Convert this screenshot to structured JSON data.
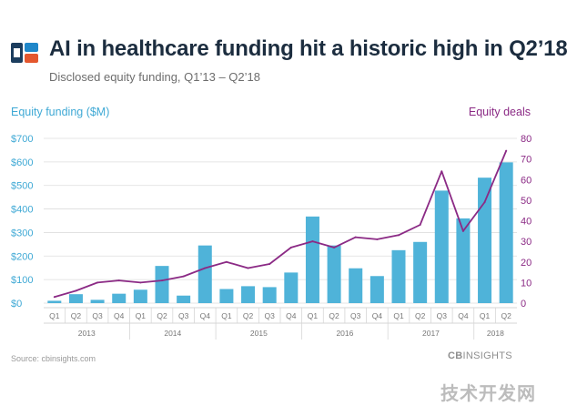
{
  "header": {
    "logo": "CB Insights logo",
    "title": "AI in healthcare funding hit a historic high in Q2’18",
    "subtitle": "Disclosed equity funding, Q1’13 – Q2’18"
  },
  "colors": {
    "bar": "#4fb3d9",
    "line": "#8b2a85",
    "left_axis_text": "#3fa9d5",
    "right_axis_text": "#8b2a85",
    "title": "#1c2d3f",
    "grid": "#dddddd"
  },
  "footer": {
    "source": "Source: cbinsights.com",
    "brand_prefix": "CB",
    "brand_suffix": "INSIGHTS",
    "watermark": "技术开发网"
  },
  "chart_data": {
    "type": "bar+line",
    "title": "AI in healthcare funding hit a historic high in Q2’18",
    "subtitle": "Disclosed equity funding, Q1’13 – Q2’18",
    "ylabel_left": "Equity funding ($M)",
    "ylabel_right": "Equity deals",
    "ylim_left": [
      0,
      700
    ],
    "ylim_right": [
      0,
      80
    ],
    "left_ticks": [
      "$0",
      "$100",
      "$200",
      "$300",
      "$400",
      "$500",
      "$600",
      "$700"
    ],
    "right_ticks": [
      "0",
      "10",
      "20",
      "30",
      "40",
      "50",
      "60",
      "70",
      "80"
    ],
    "grid": true,
    "legend": "none",
    "categories": [
      "Q1",
      "Q2",
      "Q3",
      "Q4",
      "Q1",
      "Q2",
      "Q3",
      "Q4",
      "Q1",
      "Q2",
      "Q3",
      "Q4",
      "Q1",
      "Q2",
      "Q3",
      "Q4",
      "Q1",
      "Q2",
      "Q3",
      "Q4",
      "Q1",
      "Q2"
    ],
    "year_groups": [
      {
        "year": "2013",
        "count": 4
      },
      {
        "year": "2014",
        "count": 4
      },
      {
        "year": "2015",
        "count": 4
      },
      {
        "year": "2016",
        "count": 4
      },
      {
        "year": "2017",
        "count": 4
      },
      {
        "year": "2018",
        "count": 2
      }
    ],
    "series": [
      {
        "name": "Equity funding ($M)",
        "type": "bar",
        "axis": "left",
        "values": [
          10,
          38,
          14,
          40,
          57,
          158,
          32,
          245,
          60,
          72,
          68,
          130,
          368,
          245,
          148,
          115,
          225,
          260,
          478,
          360,
          533,
          598
        ]
      },
      {
        "name": "Equity deals",
        "type": "line",
        "axis": "right",
        "values": [
          3,
          6,
          10,
          11,
          10,
          11,
          13,
          17,
          20,
          17,
          19,
          27,
          30,
          27,
          32,
          31,
          33,
          38,
          64,
          35,
          49,
          74
        ]
      }
    ]
  }
}
